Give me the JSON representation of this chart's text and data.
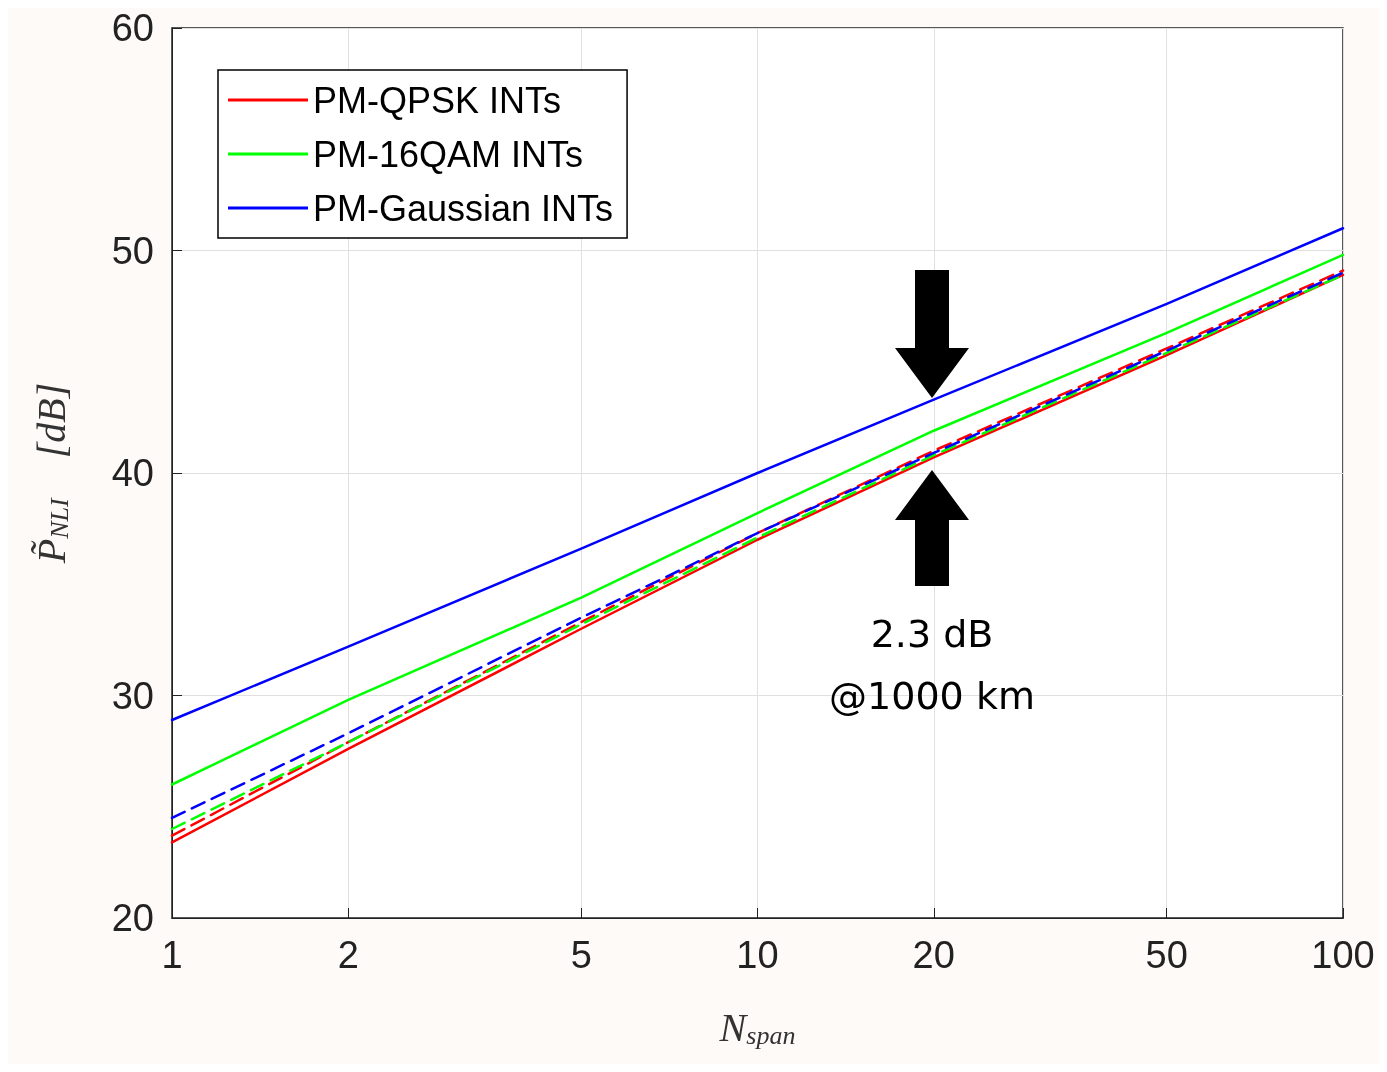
{
  "chart_data": {
    "type": "line",
    "xlabel": "N$_{span}$",
    "ylabel": "P̃$_{NLI}$    [dB]",
    "log": "x",
    "grid": true,
    "legend": "top left",
    "marker": "none",
    "x": [
      1,
      2,
      5,
      10,
      20,
      50,
      100
    ],
    "xlim": [
      1,
      100
    ],
    "xticks": [
      1,
      2,
      5,
      10,
      20,
      50,
      100
    ],
    "ylim": [
      20,
      60
    ],
    "yticks": [
      20,
      30,
      40,
      50,
      60
    ],
    "series": [
      {
        "name": "PM-QPSK INTs",
        "color": "#ff0000",
        "line_style": "solid",
        "values": [
          23.4,
          27.6,
          33.0,
          37.0,
          40.7,
          45.3,
          48.9
        ]
      },
      {
        "name": "PM-16QAM INTs",
        "color": "#00ff00",
        "line_style": "solid",
        "values": [
          26.0,
          29.8,
          34.4,
          38.2,
          41.9,
          46.3,
          49.8
        ]
      },
      {
        "name": "PM-Gaussian INTs",
        "color": "#0000ff",
        "line_style": "solid",
        "values": [
          28.9,
          32.2,
          36.6,
          40.0,
          43.3,
          47.6,
          51.0
        ]
      },
      {
        "color": "#ff0000",
        "line_style": "dashed",
        "values": [
          23.7,
          27.9,
          33.3,
          37.3,
          41.0,
          45.6,
          49.1
        ]
      },
      {
        "color": "#00ff00",
        "line_style": "dashed",
        "values": [
          24.0,
          27.9,
          33.2,
          37.1,
          40.8,
          45.4,
          48.9
        ]
      },
      {
        "color": "#0000ff",
        "line_style": "dashed",
        "values": [
          24.5,
          28.3,
          33.5,
          37.3,
          40.9,
          45.5,
          49.0
        ]
      }
    ],
    "annotations": [
      "2.3 dB\n@1000 km"
    ]
  }
}
